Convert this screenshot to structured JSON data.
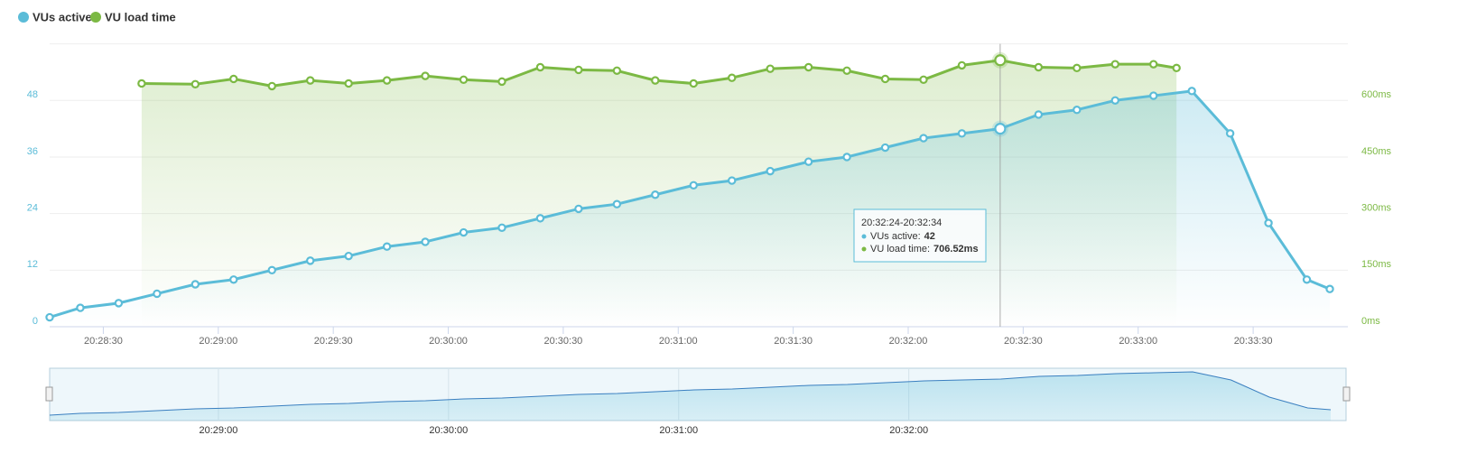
{
  "chart_data": {
    "type": "line",
    "series": [
      {
        "name": "VUs active",
        "color": "#5bbcd8",
        "axis": "y",
        "x": [
          "20:28:16",
          "20:28:24",
          "20:28:34",
          "20:28:44",
          "20:28:54",
          "20:29:04",
          "20:29:14",
          "20:29:24",
          "20:29:34",
          "20:29:44",
          "20:29:54",
          "20:30:04",
          "20:30:14",
          "20:30:24",
          "20:30:34",
          "20:30:44",
          "20:30:54",
          "20:31:04",
          "20:31:14",
          "20:31:24",
          "20:31:34",
          "20:31:44",
          "20:31:54",
          "20:32:04",
          "20:32:14",
          "20:32:24",
          "20:32:34",
          "20:32:44",
          "20:32:54",
          "20:33:04",
          "20:33:14",
          "20:33:24",
          "20:33:34",
          "20:33:44",
          "20:33:50"
        ],
        "values": [
          2,
          4,
          5,
          7,
          9,
          10,
          12,
          14,
          15,
          17,
          18,
          20,
          21,
          23,
          25,
          26,
          28,
          30,
          31,
          33,
          35,
          36,
          38,
          40,
          41,
          42,
          45,
          46,
          48,
          49,
          50,
          41,
          22,
          10,
          8
        ]
      },
      {
        "name": "VU load time",
        "color": "#7cb944",
        "axis": "y2",
        "x": [
          "20:28:40",
          "20:28:54",
          "20:29:04",
          "20:29:14",
          "20:29:24",
          "20:29:34",
          "20:29:44",
          "20:29:54",
          "20:30:04",
          "20:30:14",
          "20:30:24",
          "20:30:34",
          "20:30:44",
          "20:30:54",
          "20:31:04",
          "20:31:14",
          "20:31:24",
          "20:31:34",
          "20:31:44",
          "20:31:54",
          "20:32:04",
          "20:32:14",
          "20:32:24",
          "20:32:34",
          "20:32:44",
          "20:32:54",
          "20:33:04",
          "20:33:10"
        ],
        "values": [
          645,
          643,
          657,
          638,
          653,
          645,
          653,
          665,
          655,
          650,
          688,
          681,
          679,
          653,
          645,
          660,
          684,
          688,
          679,
          657,
          655,
          693,
          706.52,
          688,
          686,
          696,
          696,
          686
        ]
      }
    ],
    "xlim": [
      "20:28:16",
      "20:33:54"
    ],
    "xticks": [
      "20:28:30",
      "20:29:00",
      "20:29:30",
      "20:30:00",
      "20:30:30",
      "20:31:00",
      "20:31:30",
      "20:32:00",
      "20:32:30",
      "20:33:00",
      "20:33:30"
    ],
    "ylim": [
      0,
      60
    ],
    "yticks": [
      0,
      12,
      24,
      36,
      48
    ],
    "y2lim": [
      0,
      750
    ],
    "y2ticks": [
      {
        "value": 0,
        "label": "0ms"
      },
      {
        "value": 150,
        "label": "150ms"
      },
      {
        "value": 300,
        "label": "300ms"
      },
      {
        "value": 450,
        "label": "450ms"
      },
      {
        "value": 600,
        "label": "600ms"
      }
    ],
    "grid": true,
    "legend": "top-left",
    "tooltip": {
      "title": "20:32:24-20:32:34",
      "items": [
        {
          "label": "VUs active:",
          "value": "42"
        },
        {
          "label": "VU load time:",
          "value": "706.52ms"
        }
      ]
    },
    "navigator": {
      "xticks": [
        "20:29:00",
        "20:30:00",
        "20:31:00",
        "20:32:00"
      ]
    }
  }
}
